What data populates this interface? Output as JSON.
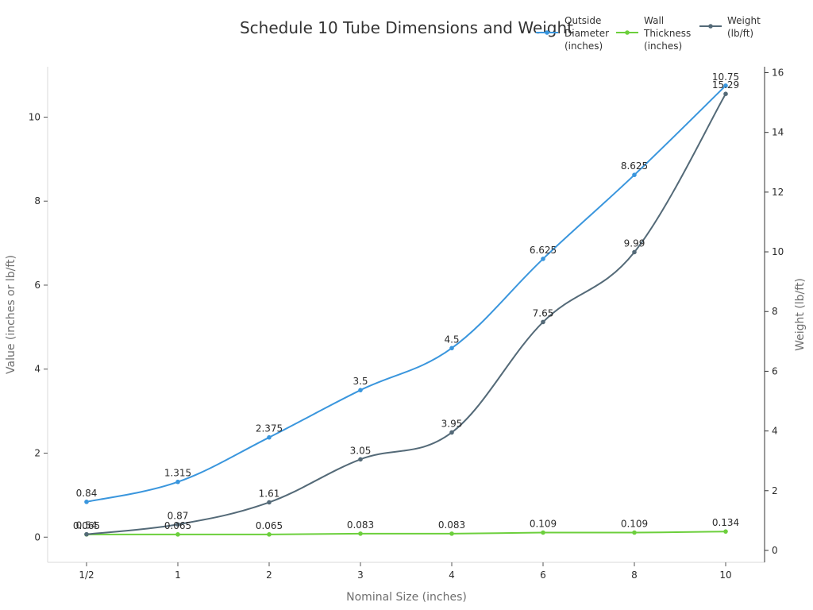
{
  "chart_data": {
    "type": "line",
    "title": "Schedule 10 Tube Dimensions and Weight",
    "xlabel": "Nominal Size (inches)",
    "ylabel": "Value (inches or lb/ft)",
    "y2label": "Weight (lb/ft)",
    "categories": [
      "1/2",
      "1",
      "2",
      "3",
      "4",
      "6",
      "8",
      "10"
    ],
    "ylim": [
      -0.6,
      11.2
    ],
    "y2lim": [
      -0.4,
      16.2
    ],
    "yticks": [
      0,
      2,
      4,
      6,
      8,
      10
    ],
    "y2ticks": [
      0,
      2,
      4,
      6,
      8,
      10,
      12,
      14,
      16
    ],
    "legend_position": "top-right",
    "grid": false,
    "series": [
      {
        "name": "Outside Diameter (inches)",
        "legend_lines": [
          "Outside",
          "Diameter",
          "(inches)"
        ],
        "axis": "left",
        "color": "#3a96dd",
        "values": [
          0.84,
          1.315,
          2.375,
          3.5,
          4.5,
          6.625,
          8.625,
          10.75
        ],
        "labels": [
          "0.84",
          "1.315",
          "2.375",
          "3.5",
          "4.5",
          "6.625",
          "8.625",
          "10.75"
        ]
      },
      {
        "name": "Wall Thickness (inches)",
        "legend_lines": [
          "Wall",
          "Thickness",
          "(inches)"
        ],
        "axis": "left",
        "color": "#6ccf3c",
        "values": [
          0.065,
          0.065,
          0.065,
          0.083,
          0.083,
          0.109,
          0.109,
          0.134
        ],
        "labels": [
          "0.065",
          "0.065",
          "0.065",
          "0.083",
          "0.083",
          "0.109",
          "0.109",
          "0.134"
        ]
      },
      {
        "name": "Weight (lb/ft)",
        "legend_lines": [
          "Weight",
          "(lb/ft)"
        ],
        "axis": "right",
        "color": "#546a78",
        "values": [
          0.54,
          0.87,
          1.61,
          3.05,
          3.95,
          7.65,
          9.99,
          15.29
        ],
        "labels": [
          "0.54",
          "0.87",
          "1.61",
          "3.05",
          "3.95",
          "7.65",
          "9.99",
          "15.29"
        ]
      }
    ]
  }
}
